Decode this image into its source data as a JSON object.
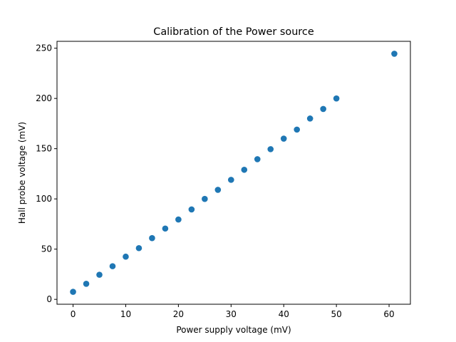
{
  "chart_data": {
    "type": "scatter",
    "title": "Calibration of the Power source",
    "xlabel": "Power supply voltage (mV)",
    "ylabel": "Hall probe voltage (mV)",
    "xlim": [
      -3.05,
      64.05
    ],
    "ylim": [
      -4.85,
      256.85
    ],
    "xticks": [
      0,
      10,
      20,
      30,
      40,
      50,
      60
    ],
    "yticks": [
      0,
      50,
      100,
      150,
      200,
      250
    ],
    "grid": false,
    "marker_color": "#1f77b4",
    "series": [
      {
        "x": [
          0,
          2.5,
          5,
          7.5,
          10,
          12.5,
          15,
          17.5,
          20,
          22.5,
          25,
          27.5,
          30,
          32.5,
          35,
          37.5,
          40,
          42.5,
          45,
          47.5,
          50,
          61
        ],
        "y": [
          7.5,
          15.5,
          24.5,
          33,
          42.5,
          51,
          61,
          70.5,
          79.5,
          89.5,
          100,
          109,
          119,
          129,
          139.5,
          149.5,
          160,
          169,
          180,
          189.5,
          200,
          244.5
        ]
      }
    ]
  }
}
